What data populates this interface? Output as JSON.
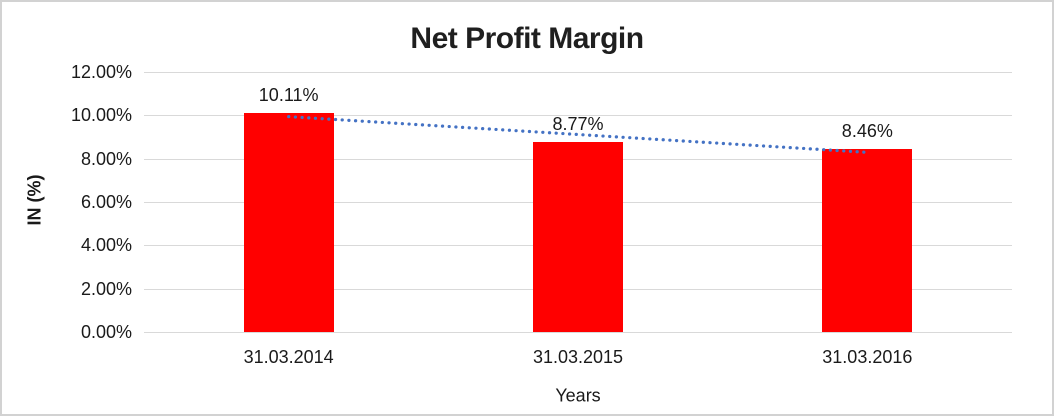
{
  "window": {
    "background_color": "#FFFFFF",
    "border_color": "#D2D2D2"
  },
  "chart_data": {
    "type": "bar",
    "title": "Net Profit Margin",
    "xlabel": "Years",
    "ylabel": "IN (%)",
    "categories": [
      "31.03.2014",
      "31.03.2015",
      "31.03.2016"
    ],
    "values": [
      10.11,
      8.77,
      8.46
    ],
    "data_labels": [
      "10.11%",
      "8.77%",
      "8.46%"
    ],
    "ylim": [
      0,
      12
    ],
    "yticks": [
      {
        "value": 0,
        "label": "0.00%"
      },
      {
        "value": 2,
        "label": "2.00%"
      },
      {
        "value": 4,
        "label": "4.00%"
      },
      {
        "value": 6,
        "label": "6.00%"
      },
      {
        "value": 8,
        "label": "8.00%"
      },
      {
        "value": 10,
        "label": "10.00%"
      },
      {
        "value": 12,
        "label": "12.00%"
      }
    ],
    "grid": true,
    "legend": "none",
    "bar_color": "#FF0000",
    "grid_color": "#D9D9D9",
    "text_color": "#1A1A1A",
    "trendline": {
      "type": "linear",
      "style": "dotted",
      "color": "#4472C4",
      "start_value": 9.94,
      "end_value": 8.29
    }
  }
}
